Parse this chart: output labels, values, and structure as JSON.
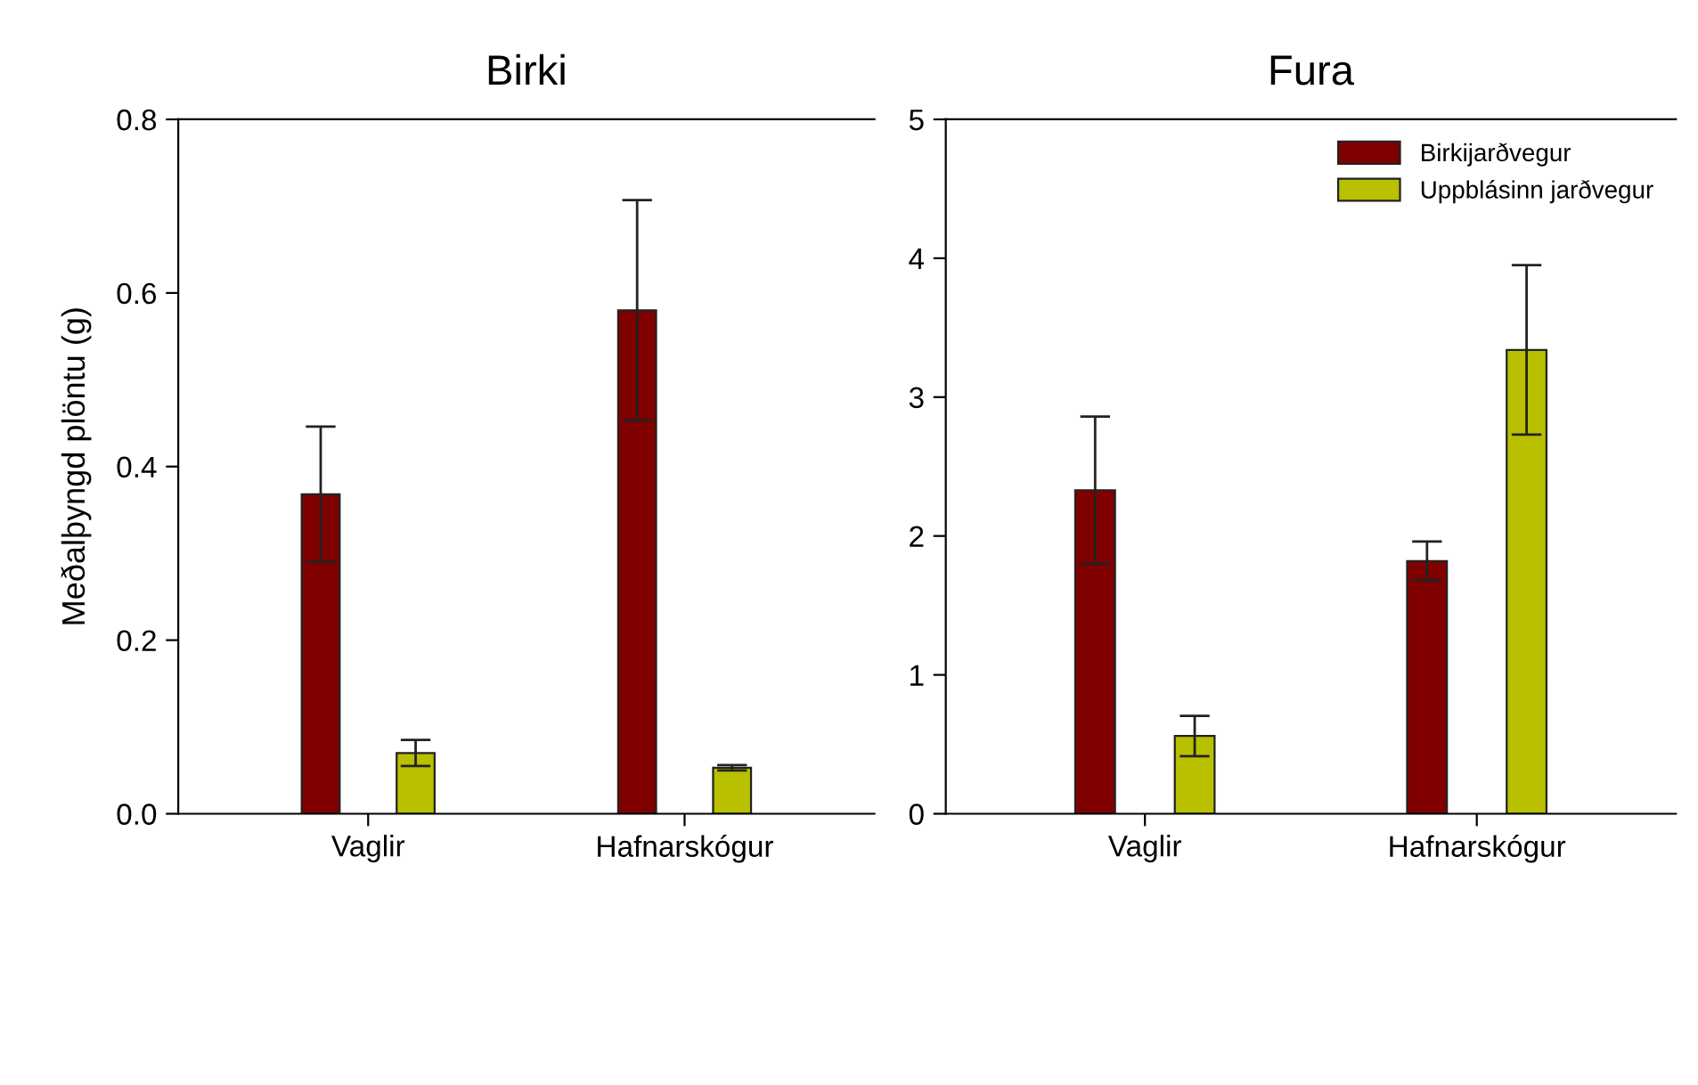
{
  "chart_data": [
    {
      "type": "bar",
      "title": "Birki",
      "ylabel": "Meðalþyngd plöntu (g)",
      "categories": [
        "Vaglir",
        "Hafnarskógur"
      ],
      "ylim": [
        0,
        0.8
      ],
      "yticks": [
        {
          "value": 0,
          "label": "0.0"
        },
        {
          "value": 0.2,
          "label": "0.2"
        },
        {
          "value": 0.4,
          "label": "0.4"
        },
        {
          "value": 0.6,
          "label": "0.6"
        },
        {
          "value": 0.8,
          "label": "0.8"
        }
      ],
      "grid": false,
      "legend": false,
      "series": [
        {
          "color": "#800000",
          "values": [
            0.368,
            0.58
          ],
          "errors": [
            0.078,
            0.127
          ]
        },
        {
          "color": "#b8c000",
          "values": [
            0.07,
            0.053
          ],
          "errors": [
            0.015,
            0.003
          ]
        }
      ]
    },
    {
      "type": "bar",
      "title": "Fura",
      "categories": [
        "Vaglir",
        "Hafnarskógur"
      ],
      "ylim": [
        0,
        5
      ],
      "yticks": [
        0,
        1,
        2,
        3,
        4,
        5
      ],
      "grid": false,
      "legend": "top right",
      "series": [
        {
          "name": "Birkijarðvegur",
          "color": "#800000",
          "values": [
            2.33,
            1.82
          ],
          "errors": [
            0.53,
            0.14
          ]
        },
        {
          "name": "Uppblásinn jarðvegur",
          "color": "#b8c000",
          "values": [
            0.56,
            3.34
          ],
          "errors": [
            0.145,
            0.61
          ]
        }
      ]
    }
  ]
}
